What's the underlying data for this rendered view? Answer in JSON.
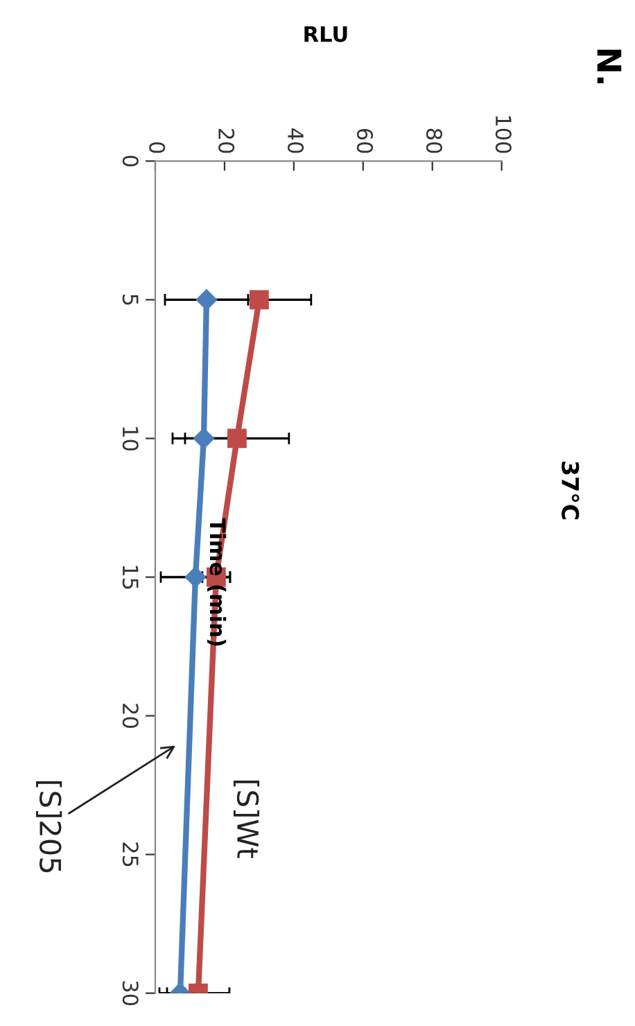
{
  "chart_data": {
    "type": "line",
    "title": "37°C",
    "subtitle": "N.",
    "xlabel": "RLU",
    "ylabel": "Time (min)",
    "series": [
      {
        "name": "[S]205",
        "color": "#4a7ebb",
        "x": [
          14.8,
          14,
          11.6,
          7.2
        ],
        "values": [
          5,
          10,
          15,
          30
        ],
        "xerrors": [
          12,
          9,
          10,
          6
        ],
        "marker": "diamond"
      },
      {
        "name": "[S]Wt",
        "color": "#be4b48",
        "x": [
          30,
          23.6,
          17.6,
          12.4
        ],
        "values": [
          5,
          10,
          15,
          30
        ],
        "xerrors": [
          15,
          15,
          4,
          9
        ],
        "marker": "square"
      }
    ],
    "xlim": [
      0,
      100
    ],
    "xticks": [
      0,
      20,
      40,
      60,
      80,
      100
    ],
    "ylim": [
      30,
      0
    ],
    "yticks": [
      0,
      5,
      10,
      15,
      20,
      25,
      30
    ],
    "grid": false,
    "legend": false,
    "line_style": "solid"
  }
}
